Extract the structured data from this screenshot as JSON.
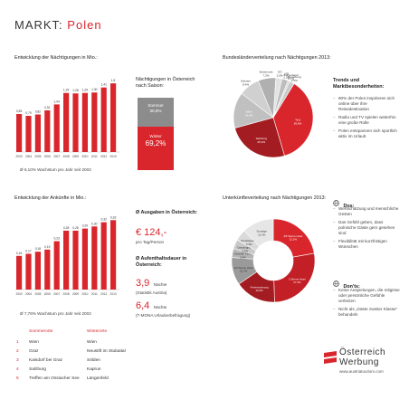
{
  "title": {
    "prefix": "MARKT:",
    "country": "Polen"
  },
  "colors": {
    "accent": "#d9262c",
    "dark": "#a31c21",
    "grey": "#8c8c8c",
    "light": "#d8d8d8"
  },
  "naechtigungen": {
    "heading": "Entwicklung der Nächtigungen in Mio.:",
    "growth": "Ø 6,10% Wachstum pro Jahr seit 2003",
    "chart_data": {
      "type": "bar",
      "categories": [
        "2003",
        "2004",
        "2005",
        "2006",
        "2007",
        "2008",
        "2009",
        "2010",
        "2011",
        "2012",
        "2013"
      ],
      "values": [
        0.83,
        0.79,
        0.82,
        0.91,
        1.04,
        1.29,
        1.28,
        1.29,
        1.3,
        1.41,
        1.5
      ],
      "value_labels": [
        "0,83",
        "0,79",
        "0,82",
        "0,91",
        "1,04",
        "1,29",
        "1,28",
        "1,29",
        "1,30",
        "1,41",
        "1,5"
      ],
      "ylim": [
        0,
        1.7
      ],
      "title": "",
      "xlabel": "",
      "ylabel": ""
    }
  },
  "saison": {
    "heading": "Nächtigungen in Österreich nach Saison:",
    "sommer_label": "Sommer",
    "sommer_value": "30,8%",
    "winter_label": "Winter",
    "winter_value": "69,2%",
    "chart_data": {
      "type": "bar",
      "categories": [
        "Sommer",
        "Winter"
      ],
      "values": [
        30.8,
        69.2
      ]
    }
  },
  "bundeslaender": {
    "heading": "Bundesländerverteilung nach Nächtigungen 2013:",
    "chart_data": {
      "type": "pie",
      "labels": [
        "Tirol",
        "Salzburg",
        "Wien",
        "Kärnten",
        "Steiermark",
        "OÖ",
        "NÖ",
        "Burgenland",
        "Vorarlberg"
      ],
      "value_labels": [
        "36,6%",
        "25,3%",
        "14,6%",
        "8,4%",
        "7,2%",
        "2,5%",
        "2,5%",
        "0,7%",
        "2,0%"
      ],
      "values": [
        36.6,
        25.3,
        14.6,
        8.4,
        7.2,
        2.5,
        2.5,
        0.7,
        2.0
      ],
      "colors": [
        "#d9262c",
        "#a31c21",
        "#c0c0c0",
        "#d0d0d0",
        "#b0b0b0",
        "#e2e2e2",
        "#bdbdbd",
        "#d5d5d5",
        "#cacaca"
      ]
    }
  },
  "trends": {
    "heading": "Trends und Marktbesonderheiten:",
    "items": [
      "90% der Polen inspirieren sich online über ihre Reisedestination",
      "Radio und TV spielen weiterhin eine große Rolle",
      "Polen entspannen sich sportlich aktiv im Urlaub"
    ]
  },
  "ankuenfte": {
    "heading": "Entwicklung der Ankünfte in Mio.:",
    "growth": "Ø 7,76% Wachstum pro Jahr seit 2003",
    "chart_data": {
      "type": "bar",
      "categories": [
        "2003",
        "2004",
        "2005",
        "2006",
        "2007",
        "2008",
        "2009",
        "2010",
        "2011",
        "2012",
        "2013"
      ],
      "values": [
        0.16,
        0.17,
        0.18,
        0.19,
        0.23,
        0.28,
        0.28,
        0.29,
        0.3,
        0.32,
        0.33
      ],
      "value_labels": [
        "0,16",
        "0,17",
        "0,18",
        "0,19",
        "0,23",
        "0,28",
        "0,28",
        "0,29",
        "0,30",
        "0,32",
        "0,33"
      ],
      "ylim": [
        0,
        0.37
      ],
      "title": "",
      "xlabel": "",
      "ylabel": ""
    }
  },
  "ausgaben": {
    "heading": "Ø Ausgaben in Österreich:",
    "value": "€ 124,-",
    "unit": "pro Tag/Person"
  },
  "aufenthalt": {
    "heading": "Ø Aufenthaltsdauer in Österreich:",
    "v1": "3,9",
    "u1": "Nächte",
    "s1": "(Statistik Austria)",
    "v2": "6,4",
    "u2": "Nächte",
    "s2": "(T-MONA Urlauberbefragung)"
  },
  "orte": {
    "sommer_header": "Sommerorte",
    "winter_header": "Winterorte",
    "rows": [
      {
        "rank": "1",
        "sommer": "Wien",
        "winter": "Wien"
      },
      {
        "rank": "2",
        "sommer": "Graz",
        "winter": "Neustift im Stubaital"
      },
      {
        "rank": "3",
        "sommer": "Kaisdorf bei Graz",
        "winter": "Sölden"
      },
      {
        "rank": "4",
        "sommer": "Salzburg",
        "winter": "Kaprun"
      },
      {
        "rank": "5",
        "sommer": "Treffen am Ossiacher See",
        "winter": "Längenfeld"
      }
    ]
  },
  "unterkunft": {
    "heading": "Unterkünfteverteilung nach Nächtigungen 2013:",
    "chart_data": {
      "type": "pie",
      "labels": [
        "4/5 Sterne Hotel",
        "3 Sterne Hotel",
        "Ferienwohnung",
        "1/2 Sterne Hotel",
        "Gewerbl. FeWo",
        "Campingplatz",
        "Privatquartier",
        "Sonstige"
      ],
      "value_labels": [
        "22,2%",
        "27,3%",
        "16,0%",
        "10,7%",
        "3,5%",
        "3,6%",
        "4,4%",
        "12,3%"
      ],
      "values": [
        22.2,
        27.3,
        16.0,
        10.7,
        3.5,
        3.6,
        4.4,
        12.3
      ],
      "colors": [
        "#d9262c",
        "#c21f26",
        "#a31c21",
        "#9a9a9a",
        "#b4b4b4",
        "#c8c8c8",
        "#dadada",
        "#e6e6e6"
      ]
    }
  },
  "dos": {
    "heading": "Dos:",
    "items": [
      "Wertschätzung und menschliche Gesten",
      "Das Gefühl geben, dass polnische Gäste gern gesehen sind",
      "Flexibilität mit kurzfristigen Wünschen"
    ]
  },
  "donts": {
    "heading": "Don'ts:",
    "items": [
      "Keine Anspielungen, die religiöse oder persönliche Gefühle verletzen",
      "Nicht als „Gäste zweiter Klasse\" behandeln"
    ]
  },
  "logo": {
    "line1": "Österreich",
    "line2": "Werbung",
    "url": "www.austriatourism.com"
  }
}
